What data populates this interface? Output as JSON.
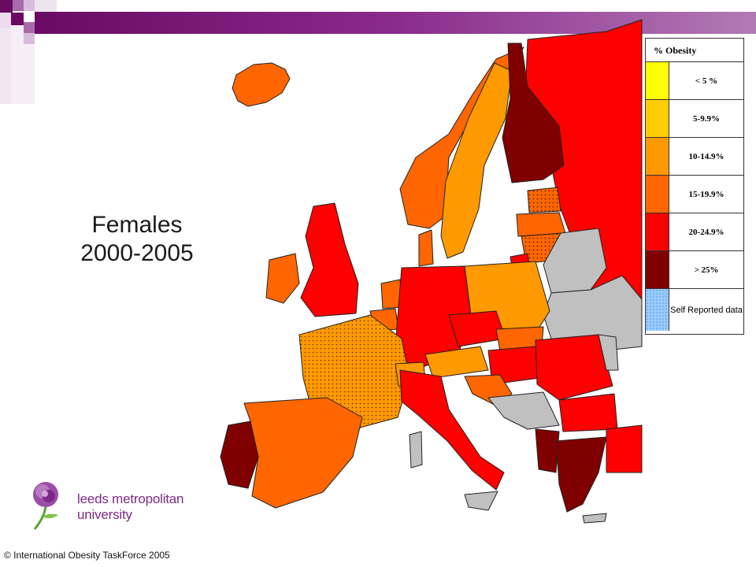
{
  "title": {
    "line1": "Females",
    "line2": "2000-2005"
  },
  "legend": {
    "heading": "% Obesity",
    "items": [
      {
        "label": "< 5 %",
        "color": "#ffff00"
      },
      {
        "label": "5-9.9%",
        "color": "#ffcc00"
      },
      {
        "label": "10-14.9%",
        "color": "#ff9900"
      },
      {
        "label": "15-19.9%",
        "color": "#ff6600"
      },
      {
        "label": "20-24.9%",
        "color": "#ff0000"
      },
      {
        "label": "> 25%",
        "color": "#800000"
      },
      {
        "label": "Self Reported data",
        "color": "#99ccff"
      }
    ]
  },
  "colors": {
    "no_data": "#c0c0c0",
    "brand_purple": "#7d2a86",
    "title_bar": "#6a0a63"
  },
  "logo": {
    "text": "leeds metropolitan university",
    "icon": "rose-icon"
  },
  "copyright": "© International Obesity TaskForce 2005"
}
